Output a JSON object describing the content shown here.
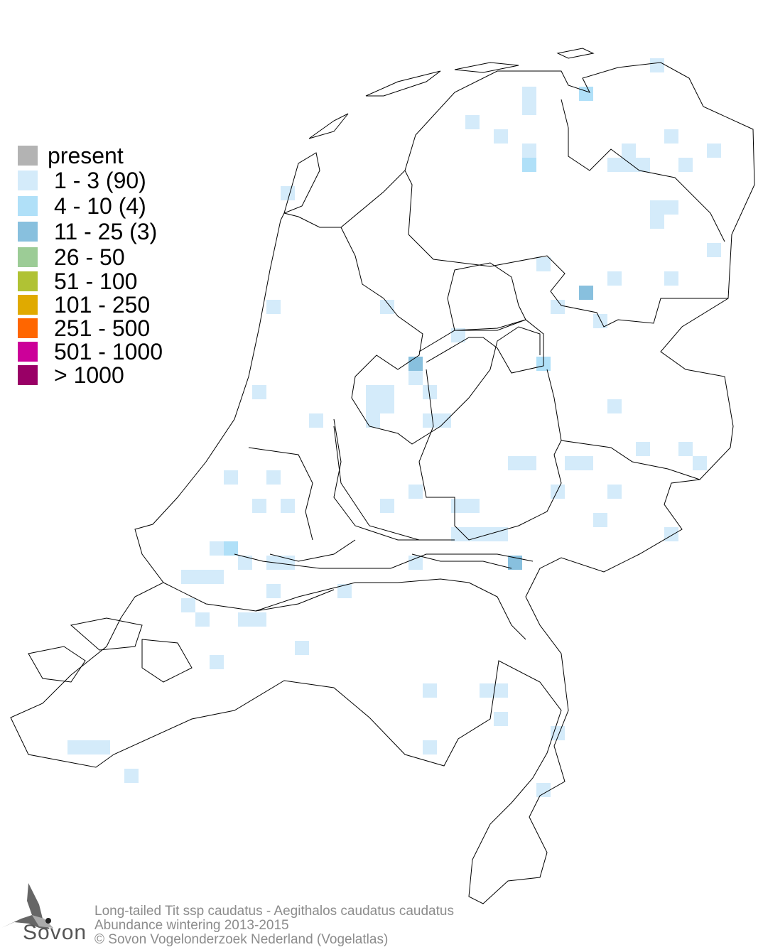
{
  "legend": {
    "items": [
      {
        "label": "present",
        "color": "#b3b3b3"
      },
      {
        "label": "1 - 3 (90)",
        "color": "#d4ebfa"
      },
      {
        "label": "4 - 10 (4)",
        "color": "#b0e0f8"
      },
      {
        "label": "11 - 25 (3)",
        "color": "#88c0de"
      },
      {
        "label": "26 - 50",
        "color": "#9ccc96"
      },
      {
        "label": "51 - 100",
        "color": "#b0c234"
      },
      {
        "label": "101 - 250",
        "color": "#e0aa00"
      },
      {
        "label": "251 - 500",
        "color": "#ff6600"
      },
      {
        "label": "501 - 1000",
        "color": "#cc0099"
      },
      {
        "label": "> 1000",
        "color": "#990066"
      }
    ]
  },
  "footer": {
    "species": "Long-tailed Tit ssp caudatus - Aegithalos caudatus caudatus",
    "subtitle": "Abundance wintering 2013-2015",
    "copyright": "© Sovon Vogelonderzoek Nederland (Vogelatlas)"
  },
  "logo": {
    "text": "Sovon"
  },
  "colors": {
    "outline": "#000000",
    "footer_text": "#8c8c8c"
  }
}
